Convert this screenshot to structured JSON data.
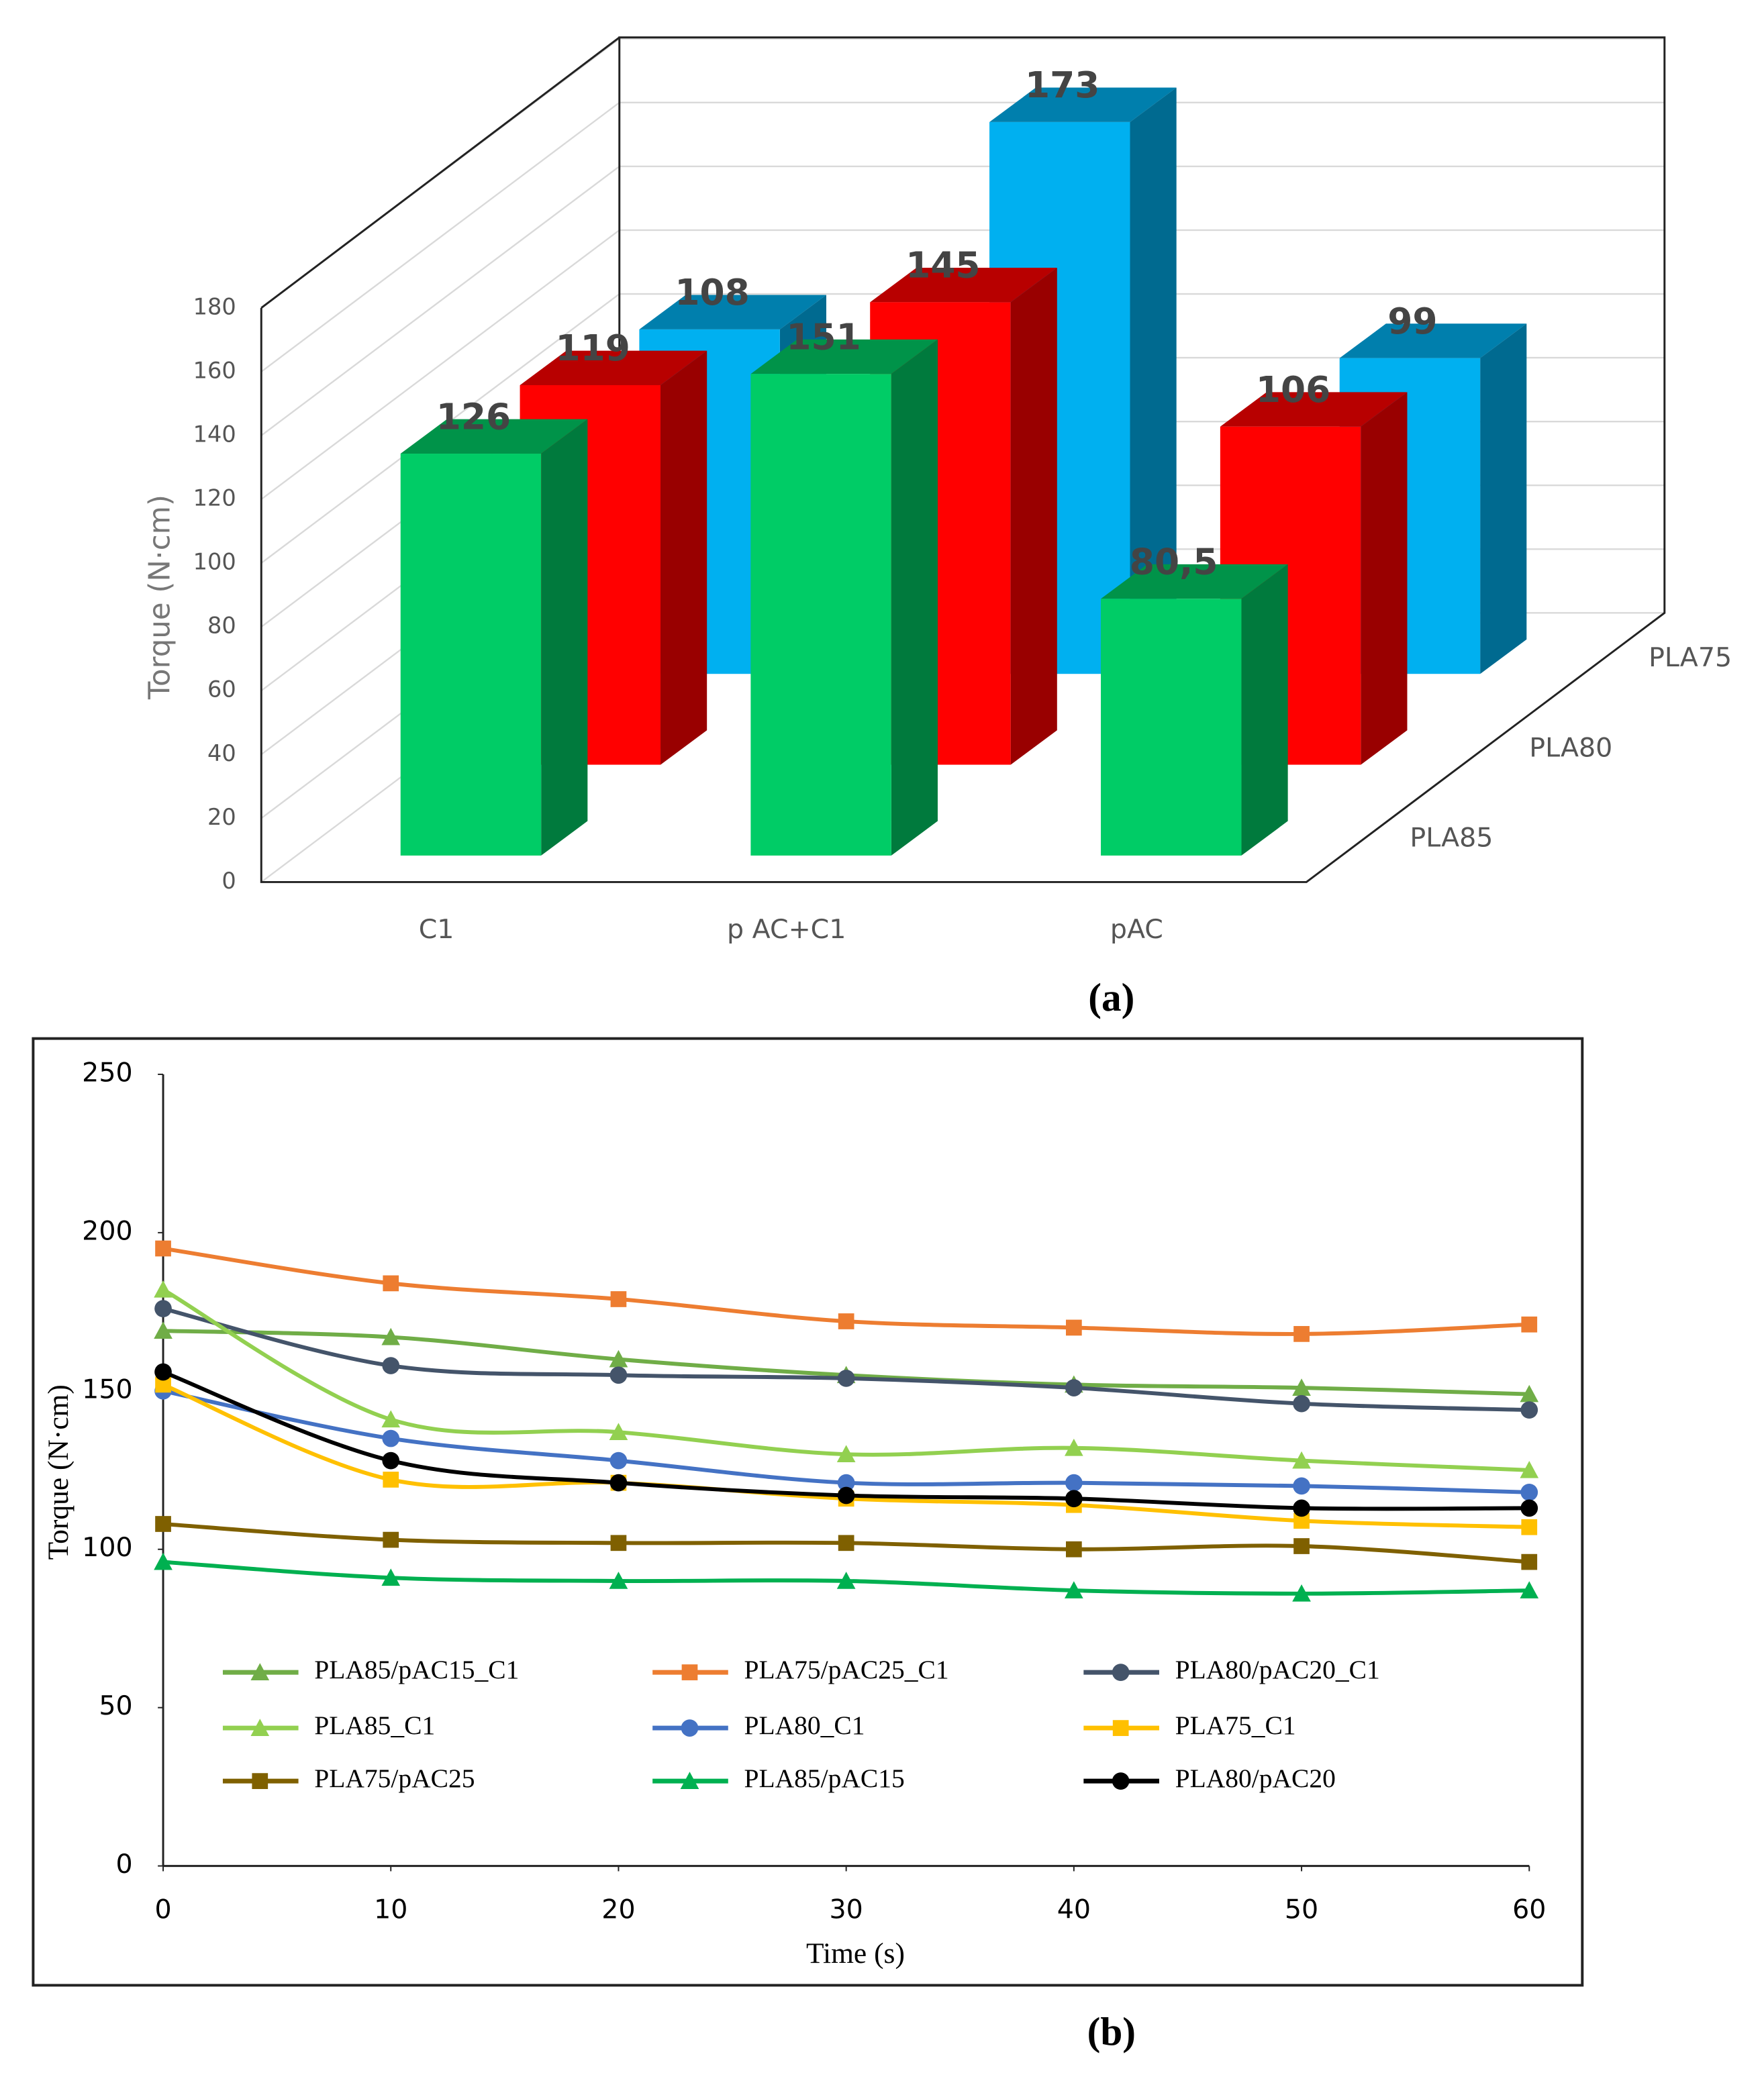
{
  "chart_data": [
    {
      "type": "bar3d",
      "caption": "(a)",
      "ylabel": "Torque (N·cm)",
      "categories": [
        "C1",
        "p AC+C1",
        "pAC"
      ],
      "series": [
        {
          "name": "PLA85",
          "color": "#00cc66",
          "values": [
            126,
            151,
            80.5
          ],
          "value_labels": [
            "126",
            "151",
            "80,5"
          ]
        },
        {
          "name": "PLA80",
          "color": "#ff0000",
          "values": [
            119,
            145,
            106
          ]
        },
        {
          "name": "PLA75",
          "color": "#00b0f0",
          "values": [
            108,
            173,
            99
          ]
        }
      ],
      "ylim": [
        0,
        180
      ],
      "yticks": [
        0,
        20,
        40,
        60,
        80,
        100,
        120,
        140,
        160,
        180
      ],
      "grid": true
    },
    {
      "type": "line",
      "caption": "(b)",
      "xlabel": "Time (s)",
      "ylabel": "Torque (N·cm)",
      "x": [
        0,
        10,
        20,
        30,
        40,
        50,
        60
      ],
      "series": [
        {
          "name": "PLA85/pAC15_C1",
          "color": "#70ad47",
          "marker": "triangle",
          "values": [
            169,
            167,
            160,
            155,
            152,
            151,
            149
          ]
        },
        {
          "name": "PLA75/pAC25_C1",
          "color": "#ed7d31",
          "marker": "square",
          "values": [
            195,
            184,
            179,
            172,
            170,
            168,
            171
          ]
        },
        {
          "name": "PLA80/pAC20_C1",
          "color": "#44546a",
          "marker": "circle",
          "values": [
            176,
            158,
            155,
            154,
            151,
            146,
            144
          ]
        },
        {
          "name": "PLA85_C1",
          "color": "#92d050",
          "marker": "triangle",
          "values": [
            182,
            141,
            137,
            130,
            132,
            128,
            125
          ]
        },
        {
          "name": "PLA80_C1",
          "color": "#4472c4",
          "marker": "circle",
          "values": [
            150,
            135,
            128,
            121,
            121,
            120,
            118
          ]
        },
        {
          "name": "PLA75_C1",
          "color": "#ffc000",
          "marker": "square",
          "values": [
            152,
            122,
            121,
            116,
            114,
            109,
            107
          ]
        },
        {
          "name": "PLA75/pAC25",
          "color": "#7f6000",
          "marker": "square",
          "values": [
            108,
            103,
            102,
            102,
            100,
            101,
            96
          ]
        },
        {
          "name": "PLA85/pAC15",
          "color": "#00b050",
          "marker": "triangle",
          "values": [
            96,
            91,
            90,
            90,
            87,
            86,
            87
          ]
        },
        {
          "name": "PLA80/pAC20",
          "color": "#000000",
          "marker": "circle",
          "values": [
            156,
            128,
            121,
            117,
            116,
            113,
            113
          ]
        }
      ],
      "xlim": [
        0,
        60
      ],
      "xticks": [
        0,
        10,
        20,
        30,
        40,
        50,
        60
      ],
      "ylim": [
        0,
        250
      ],
      "yticks": [
        0,
        50,
        100,
        150,
        200,
        250
      ]
    }
  ]
}
